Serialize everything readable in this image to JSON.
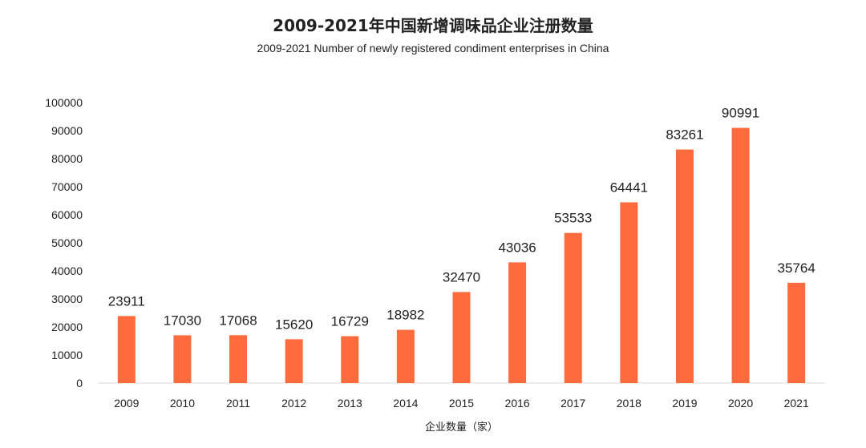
{
  "chart_data": {
    "type": "bar",
    "title": "2009-2021年中国新增调味品企业注册数量",
    "subtitle": "2009-2021 Number of newly registered condiment enterprises in China",
    "xlabel": "企业数量（家）",
    "ylabel": "",
    "categories": [
      "2009",
      "2010",
      "2011",
      "2012",
      "2013",
      "2014",
      "2015",
      "2016",
      "2017",
      "2018",
      "2019",
      "2020",
      "2021"
    ],
    "values": [
      23911,
      17030,
      17068,
      15620,
      16729,
      18982,
      32470,
      43036,
      53533,
      64441,
      83261,
      90991,
      35764
    ],
    "ylim": [
      0,
      100000
    ],
    "yticks": [
      0,
      10000,
      20000,
      30000,
      40000,
      50000,
      60000,
      70000,
      80000,
      90000,
      100000
    ],
    "grid": false,
    "bar_color": "#FF6B3D",
    "axis_color": "#D9D9D9"
  }
}
